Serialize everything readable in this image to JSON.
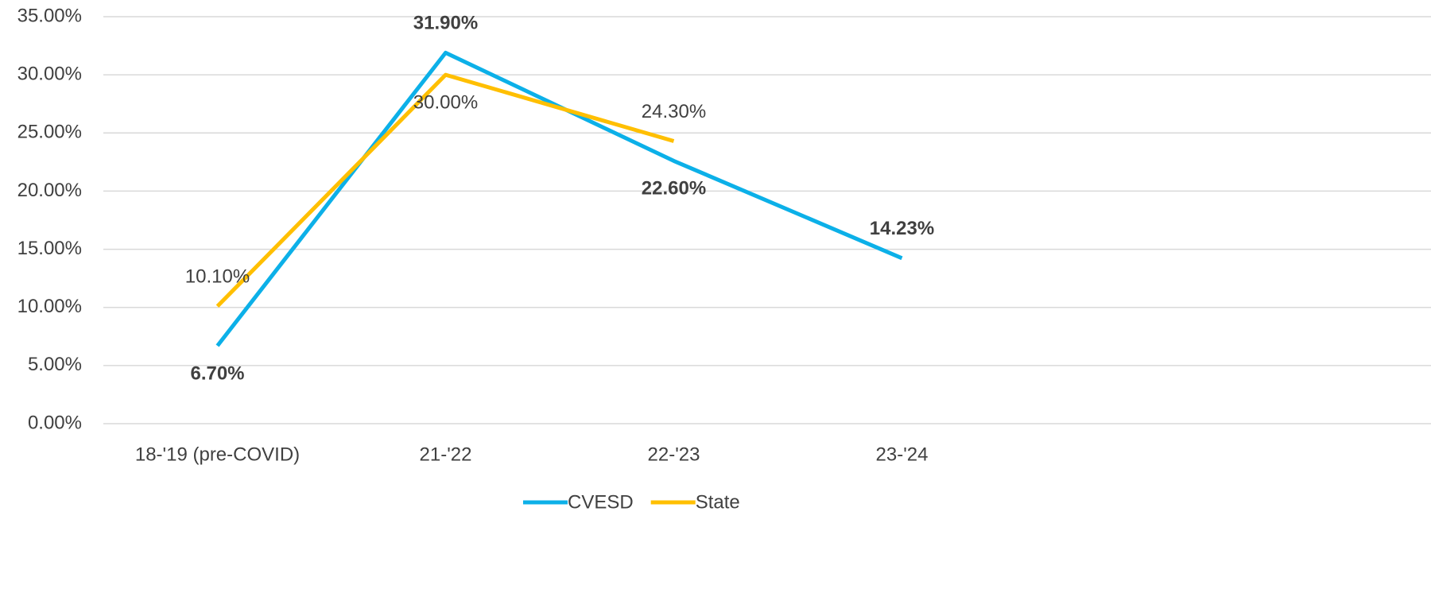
{
  "chart_data": {
    "type": "line",
    "categories": [
      "18-'19 (pre-COVID)",
      "21-'22",
      "22-'23",
      "23-'24",
      null,
      null
    ],
    "series": [
      {
        "name": "CVESD",
        "color": "#0cb0e8",
        "values": [
          6.7,
          31.9,
          22.6,
          14.23,
          null,
          null
        ],
        "value_labels": [
          "6.70%",
          "31.90%",
          "22.60%",
          "14.23%",
          null,
          null
        ]
      },
      {
        "name": "State",
        "color": "#ffbf00",
        "values": [
          10.1,
          30.0,
          24.3,
          null,
          null,
          null
        ],
        "value_labels": [
          "10.10%",
          "30.00%",
          "24.30%",
          null,
          null,
          null
        ]
      }
    ],
    "ylim": [
      0,
      35
    ],
    "yticks": [
      {
        "value": 0,
        "label": "0.00%"
      },
      {
        "value": 5,
        "label": "5.00%"
      },
      {
        "value": 10,
        "label": "10.00%"
      },
      {
        "value": 15,
        "label": "15.00%"
      },
      {
        "value": 20,
        "label": "20.00%"
      },
      {
        "value": 25,
        "label": "25.00%"
      },
      {
        "value": 30,
        "label": "30.00%"
      },
      {
        "value": 35,
        "label": "35.00%"
      }
    ],
    "grid": true,
    "legend": "bottom"
  }
}
